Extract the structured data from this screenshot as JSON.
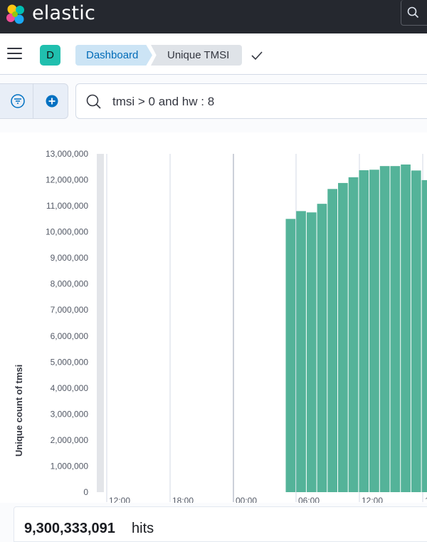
{
  "app": {
    "brand": "elastic"
  },
  "nav": {
    "space_initial": "D",
    "breadcrumbs": [
      "Dashboard",
      "Unique TMSI"
    ]
  },
  "query": {
    "text": "tmsi > 0 and hw : 8"
  },
  "colors": {
    "bar": "#54b399",
    "brand_avatar": "#20bfae",
    "topbar": "#25282f"
  },
  "chart_data": {
    "type": "bar",
    "ylabel": "Unique count of tmsi",
    "ylim": [
      0,
      13000000
    ],
    "yticks": [
      "0",
      "1,000,000",
      "2,000,000",
      "3,000,000",
      "4,000,000",
      "5,000,000",
      "6,000,000",
      "7,000,000",
      "8,000,000",
      "9,000,000",
      "10,000,000",
      "11,000,000",
      "12,000,000",
      "13,000,000"
    ],
    "xticks": [
      "12:00",
      "18:00",
      "00:00",
      "06:00",
      "12:00",
      "1"
    ],
    "values": [
      10500000,
      10800000,
      10750000,
      11080000,
      11650000,
      11880000,
      12100000,
      12370000,
      12390000,
      12530000,
      12530000,
      12590000,
      12360000,
      11990000
    ]
  },
  "summary": {
    "hits_value": "9,300,333,091",
    "hits_label": "hits"
  }
}
